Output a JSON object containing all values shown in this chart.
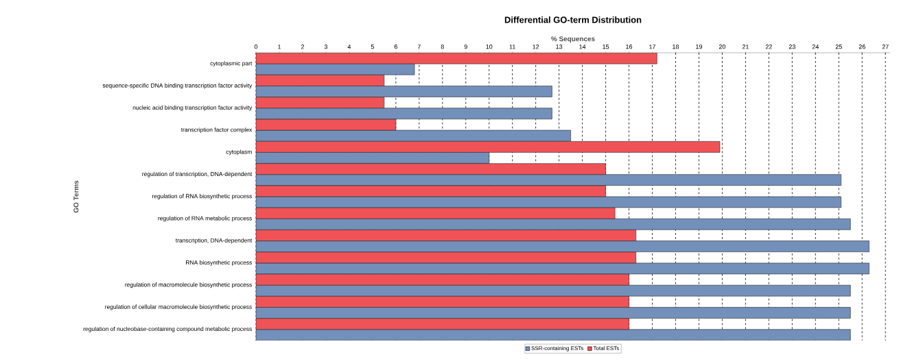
{
  "chart_data": {
    "type": "bar",
    "orientation": "horizontal",
    "title": "Differential GO-term Distribution",
    "xlabel": "% Sequences",
    "ylabel": "GO Terms",
    "categories": [
      "cytoplasmic part",
      "sequence-specific DNA binding transcription factor activity",
      "nucleic acid binding transcription factor activity",
      "transcription factor complex",
      "cytoplasm",
      "regulation of transcription, DNA-dependent",
      "regulation of RNA biosynthetic process",
      "regulation of RNA metabolic process",
      "transcription, DNA-dependent",
      "RNA biosynthetic process",
      "regulation of macromolecule biosynthetic process",
      "regulation of cellular macromolecule biosynthetic process",
      "regulation of nucleobase-containing compound metabolic process"
    ],
    "series": [
      {
        "name": "SSR-containing ESTs",
        "color": "#7390bb",
        "values": [
          6.8,
          12.7,
          12.7,
          13.5,
          10.0,
          25.1,
          25.1,
          25.5,
          26.3,
          26.3,
          25.5,
          25.5,
          25.5
        ]
      },
      {
        "name": "Total ESTs",
        "color": "#ef5357",
        "values": [
          17.2,
          5.5,
          5.5,
          6.0,
          19.9,
          15.0,
          15.0,
          15.4,
          16.3,
          16.3,
          16.0,
          16.0,
          16.0
        ]
      }
    ],
    "xlim": [
      0,
      27.2
    ],
    "xticks": [
      0,
      1,
      2,
      3,
      4,
      5,
      6,
      7,
      8,
      9,
      10,
      11,
      12,
      13,
      14,
      15,
      16,
      17,
      18,
      19,
      20,
      21,
      22,
      23,
      24,
      25,
      26,
      27
    ],
    "grid": "x",
    "legend": "bottom"
  }
}
